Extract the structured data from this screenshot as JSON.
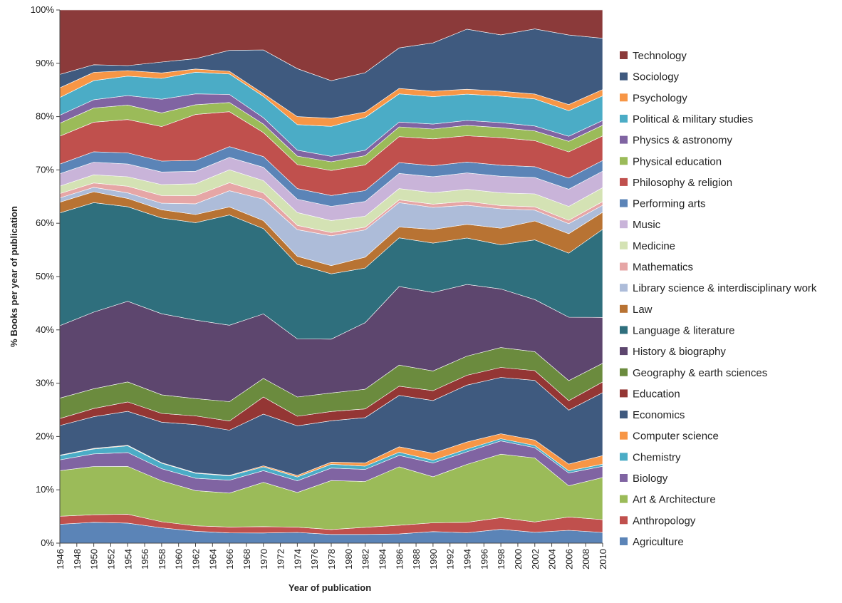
{
  "chart_data": {
    "type": "area",
    "stacked": true,
    "normalized": true,
    "title": "",
    "xlabel": "Year of publication",
    "ylabel": "% Books per year of publication",
    "xlim": [
      1946,
      2010
    ],
    "ylim": [
      0,
      100
    ],
    "x_tick_labels": [
      "1946",
      "1948",
      "1950",
      "1952",
      "1954",
      "1956",
      "1958",
      "1960",
      "1962",
      "1964",
      "1966",
      "1968",
      "1970",
      "1972",
      "1974",
      "1976",
      "1978",
      "1980",
      "1982",
      "1984",
      "1986",
      "1988",
      "1990",
      "1992",
      "1994",
      "1996",
      "1998",
      "2000",
      "2002",
      "2004",
      "2006",
      "2008",
      "2010"
    ],
    "y_tick_labels": [
      "0%",
      "10%",
      "20%",
      "30%",
      "40%",
      "50%",
      "60%",
      "70%",
      "80%",
      "90%",
      "100%"
    ],
    "legend_order": [
      "Technology",
      "Sociology",
      "Psychology",
      "Political & military studies",
      "Physics & astronomy",
      "Physical education",
      "Philosophy & religion",
      "Performing arts",
      "Music",
      "Medicine",
      "Mathematics",
      "Library science & interdisciplinary work",
      "Law",
      "Language & literature",
      "History & biography",
      "Geography & earth sciences",
      "Education",
      "Economics",
      "Computer science",
      "Chemistry",
      "Biology",
      "Art & Architecture",
      "Anthropology",
      "Agriculture"
    ],
    "x": [
      1946,
      1950,
      1954,
      1958,
      1962,
      1966,
      1970,
      1974,
      1978,
      1982,
      1986,
      1990,
      1994,
      1998,
      2002,
      2006,
      2010
    ],
    "series": [
      {
        "name": "Agriculture",
        "color": "#5b84b7",
        "values": [
          3.5,
          3.8,
          3.6,
          2.8,
          2.2,
          1.9,
          1.9,
          2.0,
          1.6,
          1.6,
          1.7,
          2.1,
          1.9,
          2.5,
          2.0,
          2.3,
          2.0
        ]
      },
      {
        "name": "Anthropology",
        "color": "#c0504d",
        "values": [
          1.5,
          1.4,
          1.6,
          1.1,
          1.0,
          1.1,
          1.2,
          1.0,
          0.9,
          1.3,
          1.6,
          1.6,
          1.9,
          2.1,
          1.9,
          2.4,
          2.4
        ]
      },
      {
        "name": "Art & Architecture",
        "color": "#9bbb59",
        "values": [
          8.5,
          8.8,
          8.6,
          7.5,
          6.5,
          6.3,
          8.3,
          6.5,
          9.0,
          8.4,
          10.8,
          8.4,
          10.6,
          11.5,
          11.8,
          5.6,
          7.9
        ]
      },
      {
        "name": "Biology",
        "color": "#8064a2",
        "values": [
          2.0,
          2.3,
          2.5,
          2.2,
          2.3,
          2.4,
          2.2,
          2.2,
          2.3,
          2.2,
          2.1,
          2.5,
          2.3,
          2.4,
          1.9,
          2.3,
          2.1
        ]
      },
      {
        "name": "Chemistry",
        "color": "#4bacc6",
        "values": [
          0.8,
          0.9,
          1.2,
          1.0,
          0.9,
          0.8,
          0.7,
          0.7,
          0.7,
          0.6,
          0.6,
          0.5,
          0.5,
          0.4,
          0.4,
          0.4,
          0.4
        ]
      },
      {
        "name": "Computer science",
        "color": "#f79646",
        "values": [
          0.1,
          0.1,
          0.1,
          0.1,
          0.1,
          0.1,
          0.2,
          0.3,
          0.4,
          0.6,
          1.0,
          1.3,
          1.3,
          0.9,
          1.0,
          1.2,
          1.6
        ]
      },
      {
        "name": "Economics",
        "color": "#3f5a7f",
        "values": [
          5.5,
          5.8,
          6.1,
          7.4,
          8.9,
          8.4,
          9.7,
          9.3,
          7.6,
          8.3,
          9.5,
          9.6,
          10.4,
          10.2,
          11.0,
          9.7,
          11.8
        ]
      },
      {
        "name": "Education",
        "color": "#943634",
        "values": [
          1.3,
          1.5,
          1.7,
          1.6,
          1.6,
          1.7,
          3.2,
          1.8,
          1.7,
          1.6,
          1.7,
          1.8,
          1.8,
          1.8,
          1.8,
          1.7,
          2.0
        ]
      },
      {
        "name": "Geography & earth sciences",
        "color": "#6b8b3e",
        "values": [
          3.8,
          3.6,
          3.6,
          3.4,
          3.2,
          3.6,
          3.5,
          3.6,
          3.4,
          3.6,
          3.9,
          3.6,
          3.5,
          3.6,
          3.5,
          3.6,
          3.5
        ]
      },
      {
        "name": "History & biography",
        "color": "#5d466e",
        "values": [
          13.5,
          14.0,
          14.5,
          14.8,
          14.5,
          14.2,
          12.1,
          10.9,
          9.9,
          12.2,
          14.5,
          14.3,
          13.1,
          10.6,
          9.6,
          11.4,
          8.6
        ]
      },
      {
        "name": "Language & literature",
        "color": "#2f6f7d",
        "values": [
          21.0,
          20.0,
          17.0,
          17.5,
          18.0,
          20.5,
          16.0,
          14.0,
          12.0,
          10.0,
          9.0,
          9.0,
          8.5,
          8.0,
          11.0,
          11.5,
          16.5
        ]
      },
      {
        "name": "Law",
        "color": "#b87333",
        "values": [
          2.0,
          2.0,
          1.5,
          1.5,
          1.5,
          1.5,
          1.5,
          1.5,
          1.5,
          2.0,
          2.0,
          2.5,
          2.5,
          3.0,
          3.5,
          3.5,
          3.2
        ]
      },
      {
        "name": "Library science & interdisciplinary work",
        "color": "#adbcd9",
        "values": [
          0.8,
          0.8,
          1.0,
          1.2,
          2.0,
          3.0,
          4.0,
          5.0,
          5.5,
          5.0,
          4.5,
          4.0,
          3.5,
          3.5,
          2.0,
          1.8,
          1.3
        ]
      },
      {
        "name": "Mathematics",
        "color": "#e6a6a6",
        "values": [
          0.8,
          0.8,
          1.2,
          1.4,
          1.5,
          1.5,
          1.2,
          0.8,
          0.6,
          0.5,
          0.5,
          0.6,
          0.7,
          0.6,
          0.6,
          0.6,
          0.7
        ]
      },
      {
        "name": "Medicine",
        "color": "#d4e2b4",
        "values": [
          1.4,
          1.5,
          1.7,
          2.0,
          2.2,
          2.4,
          2.3,
          2.4,
          2.2,
          2.0,
          2.1,
          2.1,
          2.2,
          2.3,
          2.4,
          2.5,
          2.6
        ]
      },
      {
        "name": "Music",
        "color": "#c9b4d9",
        "values": [
          2.3,
          2.3,
          2.3,
          2.3,
          2.3,
          2.3,
          2.5,
          2.5,
          2.6,
          2.7,
          2.8,
          2.9,
          3.0,
          3.0,
          3.0,
          3.1,
          3.1
        ]
      },
      {
        "name": "Performing arts",
        "color": "#5b84b7",
        "values": [
          1.8,
          1.9,
          2.0,
          2.0,
          2.0,
          2.0,
          2.0,
          2.0,
          2.0,
          2.0,
          2.0,
          2.0,
          2.0,
          2.0,
          2.0,
          2.0,
          2.0
        ]
      },
      {
        "name": "Philosophy & religion",
        "color": "#c0504d",
        "values": [
          5.2,
          5.4,
          6.0,
          6.3,
          8.5,
          6.5,
          4.5,
          4.5,
          4.6,
          4.7,
          4.8,
          4.9,
          4.8,
          5.0,
          4.8,
          4.7,
          4.6
        ]
      },
      {
        "name": "Physical education",
        "color": "#9bbb59",
        "values": [
          2.4,
          2.6,
          2.6,
          2.5,
          1.8,
          1.7,
          1.6,
          1.6,
          1.6,
          1.7,
          1.8,
          1.8,
          1.9,
          1.8,
          1.8,
          1.9,
          2.0
        ]
      },
      {
        "name": "Physics & astronomy",
        "color": "#8064a2",
        "values": [
          1.5,
          1.5,
          1.7,
          2.5,
          2.0,
          1.5,
          1.2,
          1.1,
          1.0,
          1.0,
          0.9,
          0.9,
          0.9,
          0.9,
          0.9,
          0.9,
          0.9
        ]
      },
      {
        "name": "Political & military studies",
        "color": "#4bacc6",
        "values": [
          3.3,
          3.5,
          3.5,
          3.8,
          4.0,
          3.8,
          4.0,
          4.8,
          5.5,
          6.0,
          5.2,
          5.0,
          4.8,
          4.8,
          5.0,
          4.6,
          4.6
        ]
      },
      {
        "name": "Psychology",
        "color": "#f79646",
        "values": [
          1.8,
          1.5,
          1.0,
          1.0,
          0.6,
          0.5,
          0.5,
          1.5,
          1.5,
          1.0,
          1.0,
          1.0,
          0.9,
          0.9,
          0.9,
          1.1,
          1.2
        ]
      },
      {
        "name": "Sociology",
        "color": "#3f5a7f",
        "values": [
          2.5,
          1.4,
          0.9,
          2.0,
          1.9,
          3.9,
          8.2,
          9.0,
          6.9,
          7.2,
          7.5,
          8.8,
          11.0,
          10.2,
          12.0,
          12.5,
          9.6
        ]
      },
      {
        "name": "Technology",
        "color": "#8b3a3a",
        "values": [
          12.0,
          10.0,
          10.0,
          9.5,
          9.0,
          7.5,
          7.5,
          11.0,
          13.0,
          11.5,
          7.0,
          6.0,
          3.5,
          4.5,
          3.5,
          4.5,
          5.3
        ]
      }
    ]
  }
}
